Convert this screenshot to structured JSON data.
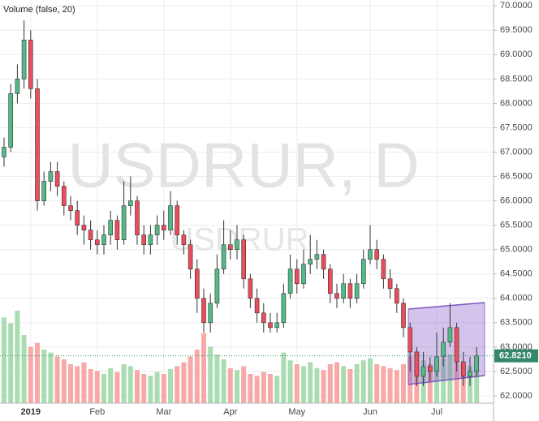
{
  "chart_data": {
    "type": "candlestick",
    "title": "Volume (false, 20)",
    "watermark": "USDRUR, D",
    "watermark_sub": "USDRUR",
    "categories": [
      null,
      null,
      null,
      null,
      "2019",
      null,
      null,
      null,
      null,
      null,
      null,
      null,
      null,
      null,
      "Feb",
      null,
      null,
      null,
      null,
      null,
      null,
      null,
      null,
      null,
      "Mar",
      null,
      null,
      null,
      null,
      null,
      null,
      null,
      null,
      null,
      "Apr",
      null,
      null,
      null,
      null,
      null,
      null,
      null,
      null,
      null,
      "May",
      null,
      null,
      null,
      null,
      null,
      null,
      null,
      null,
      null,
      null,
      "Jun",
      null,
      null,
      null,
      null,
      null,
      null,
      null,
      null,
      null,
      "Jul",
      null,
      null,
      null,
      null,
      null,
      null
    ],
    "open": [
      66.9,
      67.1,
      68.2,
      68.5,
      69.3,
      68.3,
      66.0,
      66.4,
      66.6,
      66.3,
      65.9,
      65.8,
      65.5,
      65.4,
      65.2,
      65.1,
      65.3,
      65.6,
      65.2,
      65.9,
      66.0,
      65.3,
      65.1,
      65.3,
      65.5,
      65.4,
      65.9,
      65.3,
      65.1,
      64.6,
      64.0,
      63.5,
      63.9,
      64.6,
      65.1,
      65.0,
      65.2,
      64.4,
      64.0,
      63.7,
      63.5,
      63.4,
      63.5,
      64.1,
      64.6,
      64.3,
      64.7,
      64.8,
      64.9,
      64.6,
      64.1,
      64.0,
      64.3,
      64.0,
      64.3,
      64.8,
      65.0,
      64.8,
      64.4,
      64.2,
      63.9,
      63.4,
      62.9,
      62.4,
      62.6,
      62.5,
      62.8,
      63.1,
      63.4,
      62.7,
      62.4,
      62.5
    ],
    "high": [
      67.3,
      68.4,
      68.8,
      69.7,
      69.5,
      68.5,
      66.6,
      66.8,
      66.8,
      66.4,
      66.1,
      66.0,
      65.7,
      65.6,
      65.4,
      65.5,
      65.8,
      65.7,
      66.4,
      66.5,
      66.1,
      65.5,
      65.5,
      65.7,
      65.8,
      66.2,
      66.0,
      65.4,
      65.2,
      64.8,
      64.2,
      64.1,
      64.9,
      65.6,
      65.4,
      65.5,
      65.3,
      64.5,
      64.2,
      63.9,
      63.7,
      63.7,
      64.3,
      64.9,
      64.8,
      65.0,
      65.3,
      65.2,
      65.0,
      64.7,
      64.3,
      64.5,
      64.4,
      64.5,
      65.0,
      65.5,
      65.2,
      64.9,
      64.6,
      64.3,
      64.0,
      63.5,
      63.0,
      62.9,
      62.8,
      63.3,
      63.4,
      63.9,
      63.5,
      62.9,
      62.8,
      63.0
    ],
    "low": [
      66.7,
      67.0,
      68.0,
      68.3,
      68.1,
      65.8,
      65.9,
      66.2,
      66.1,
      65.7,
      65.6,
      65.3,
      65.1,
      65.0,
      64.9,
      64.9,
      65.1,
      65.0,
      65.1,
      65.7,
      65.1,
      64.9,
      64.9,
      65.1,
      65.2,
      65.3,
      65.1,
      64.9,
      64.4,
      63.7,
      63.3,
      63.3,
      63.8,
      64.5,
      64.8,
      64.8,
      64.2,
      63.8,
      63.5,
      63.3,
      63.3,
      63.3,
      63.4,
      64.0,
      64.1,
      64.2,
      64.5,
      64.6,
      64.4,
      63.9,
      63.8,
      63.9,
      63.8,
      63.9,
      64.2,
      64.7,
      64.6,
      64.2,
      64.0,
      63.7,
      63.2,
      62.5,
      62.2,
      62.2,
      62.3,
      62.4,
      62.6,
      63.0,
      62.5,
      62.2,
      62.2,
      62.4
    ],
    "close": [
      67.1,
      68.2,
      68.5,
      69.3,
      68.3,
      66.0,
      66.4,
      66.6,
      66.3,
      65.9,
      65.8,
      65.5,
      65.4,
      65.2,
      65.1,
      65.3,
      65.6,
      65.2,
      65.9,
      66.0,
      65.3,
      65.1,
      65.3,
      65.5,
      65.4,
      65.9,
      65.3,
      65.1,
      64.6,
      64.0,
      63.5,
      63.9,
      64.6,
      65.1,
      65.0,
      65.2,
      64.4,
      64.0,
      63.7,
      63.5,
      63.4,
      63.5,
      64.1,
      64.6,
      64.3,
      64.7,
      64.8,
      64.9,
      64.6,
      64.1,
      64.0,
      64.3,
      64.0,
      64.3,
      64.8,
      65.0,
      64.8,
      64.4,
      64.2,
      63.9,
      63.4,
      62.9,
      62.4,
      62.6,
      62.5,
      62.8,
      63.1,
      63.4,
      62.7,
      62.4,
      62.5,
      62.821
    ],
    "volume": [
      88,
      82,
      95,
      70,
      58,
      62,
      55,
      52,
      48,
      45,
      40,
      38,
      42,
      35,
      33,
      30,
      36,
      32,
      40,
      38,
      34,
      30,
      28,
      32,
      30,
      35,
      38,
      42,
      48,
      55,
      72,
      58,
      50,
      45,
      36,
      34,
      38,
      30,
      28,
      32,
      30,
      28,
      52,
      44,
      40,
      38,
      42,
      36,
      34,
      40,
      42,
      38,
      35,
      40,
      44,
      46,
      40,
      38,
      36,
      34,
      40,
      48,
      52,
      44,
      40,
      42,
      46,
      50,
      44,
      40,
      38,
      36
    ],
    "up_color": "#53b987",
    "down_color": "#eb4d5c",
    "volume_up_color": "#a9dcb1",
    "volume_down_color": "#f7a9a7",
    "ylim": [
      61.85,
      70.12
    ],
    "vlim": [
      0,
      100
    ],
    "yticks": [
      {
        "value": 62,
        "label": "62.0000"
      },
      {
        "value": 62.5,
        "label": "62.5000"
      },
      {
        "value": 63,
        "label": "63.0000"
      },
      {
        "value": 63.5,
        "label": "63.5000"
      },
      {
        "value": 64,
        "label": "64.0000"
      },
      {
        "value": 64.5,
        "label": "64.5000"
      },
      {
        "value": 65,
        "label": "65.0000"
      },
      {
        "value": 65.5,
        "label": "65.5000"
      },
      {
        "value": 66,
        "label": "66.0000"
      },
      {
        "value": 66.5,
        "label": "66.5000"
      },
      {
        "value": 67,
        "label": "67.0000"
      },
      {
        "value": 67.5,
        "label": "67.5000"
      },
      {
        "value": 68,
        "label": "68.0000"
      },
      {
        "value": 68.5,
        "label": "68.5000"
      },
      {
        "value": 69,
        "label": "69.0000"
      },
      {
        "value": 69.5,
        "label": "69.5000"
      },
      {
        "value": 70,
        "label": "70.0000"
      }
    ],
    "last_price": {
      "value": 62.821,
      "label": "62.8210"
    },
    "grid": true
  }
}
